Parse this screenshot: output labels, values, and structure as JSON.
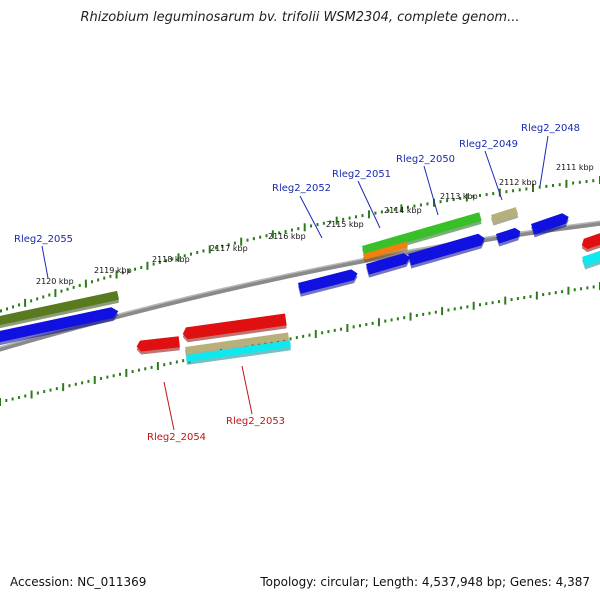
{
  "title": "Rhizobium leguminosarum bv. trifolii WSM2304, complete genom...",
  "footer": {
    "accession": "Accession: NC_011369",
    "summary": "Topology: circular; Length: 4,537,948 bp; Genes: 4,387"
  },
  "colors": {
    "backbone": "#8a8a8a",
    "tick": "#2d7a1a",
    "label_top": "#1a2bb0",
    "label_bottom": "#c41414",
    "gene_blue": "#1010e0",
    "gene_red": "#e01010",
    "gene_green": "#38c028",
    "gene_olive": "#5a7a20",
    "gene_tan": "#b8b07a",
    "gene_cyan": "#10e8f0",
    "gene_orange": "#f08010"
  },
  "scale_labels": [
    {
      "text": "2120 kbp",
      "kbp": 2120
    },
    {
      "text": "2119 kbp",
      "kbp": 2119
    },
    {
      "text": "2118 kbp",
      "kbp": 2118
    },
    {
      "text": "2117 kbp",
      "kbp": 2117
    },
    {
      "text": "2116 kbp",
      "kbp": 2116
    },
    {
      "text": "2115 kbp",
      "kbp": 2115
    },
    {
      "text": "2114 kbp",
      "kbp": 2114
    },
    {
      "text": "2113 kbp",
      "kbp": 2113
    },
    {
      "text": "2112 kbp",
      "kbp": 2112
    },
    {
      "text": "2111 kbp",
      "kbp": 2111
    }
  ],
  "gene_labels_top": [
    {
      "text": "Rleg2_2055"
    },
    {
      "text": "Rleg2_2052"
    },
    {
      "text": "Rleg2_2051"
    },
    {
      "text": "Rleg2_2050"
    },
    {
      "text": "Rleg2_2049"
    },
    {
      "text": "Rleg2_2048"
    }
  ],
  "gene_labels_bottom": [
    {
      "text": "Rleg2_2054"
    },
    {
      "text": "Rleg2_2053"
    }
  ]
}
